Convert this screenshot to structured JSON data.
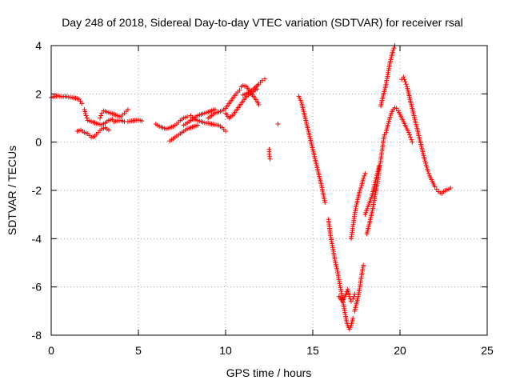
{
  "chart_data": {
    "type": "scatter",
    "title": "Day 248 of 2018, Sidereal Day-to-day VTEC variation (SDTVAR) for receiver rsal",
    "xlabel": "GPS time / hours",
    "ylabel": "SDTVAR / TECUs",
    "xlim": [
      0,
      25
    ],
    "ylim": [
      -8,
      4
    ],
    "x_ticks": [
      0,
      5,
      10,
      15,
      20,
      25
    ],
    "x_tick_labels": [
      "0",
      "5",
      "10",
      "15",
      "20",
      "25"
    ],
    "y_ticks": [
      -8,
      -6,
      -4,
      -2,
      0,
      2,
      4
    ],
    "y_tick_labels": [
      "-8",
      "-6",
      "-4",
      "-2",
      "0",
      "2",
      "4"
    ],
    "grid": true,
    "marker": "+",
    "color": "#ff0000",
    "series": [
      {
        "name": "SDTVAR",
        "points": [
          [
            0.0,
            1.85
          ],
          [
            0.2,
            1.9
          ],
          [
            0.4,
            1.92
          ],
          [
            0.6,
            1.88
          ],
          [
            0.8,
            1.9
          ],
          [
            1.0,
            1.87
          ],
          [
            1.2,
            1.85
          ],
          [
            1.4,
            1.82
          ],
          [
            1.6,
            1.78
          ],
          [
            1.75,
            1.6
          ],
          [
            1.5,
            0.45
          ],
          [
            1.7,
            0.5
          ],
          [
            1.9,
            0.4
          ],
          [
            2.1,
            0.35
          ],
          [
            2.3,
            0.2
          ],
          [
            2.5,
            0.25
          ],
          [
            2.7,
            0.4
          ],
          [
            2.9,
            0.55
          ],
          [
            3.1,
            0.6
          ],
          [
            3.3,
            0.5
          ],
          [
            1.9,
            1.35
          ],
          [
            2.0,
            1.1
          ],
          [
            2.1,
            0.9
          ],
          [
            2.3,
            0.85
          ],
          [
            2.5,
            0.8
          ],
          [
            2.7,
            0.75
          ],
          [
            2.9,
            0.72
          ],
          [
            3.1,
            0.8
          ],
          [
            3.3,
            0.9
          ],
          [
            3.5,
            0.95
          ],
          [
            2.8,
            1.0
          ],
          [
            2.9,
            1.2
          ],
          [
            3.0,
            1.3
          ],
          [
            3.2,
            1.25
          ],
          [
            3.4,
            1.2
          ],
          [
            3.6,
            1.15
          ],
          [
            3.8,
            1.1
          ],
          [
            4.0,
            1.05
          ],
          [
            4.2,
            1.2
          ],
          [
            4.4,
            1.35
          ],
          [
            3.6,
            0.85
          ],
          [
            3.8,
            0.88
          ],
          [
            4.0,
            0.9
          ],
          [
            4.2,
            0.85
          ],
          [
            4.4,
            0.85
          ],
          [
            4.6,
            0.88
          ],
          [
            4.8,
            0.9
          ],
          [
            5.0,
            0.92
          ],
          [
            5.2,
            0.88
          ],
          [
            6.0,
            0.75
          ],
          [
            6.2,
            0.65
          ],
          [
            6.4,
            0.6
          ],
          [
            6.6,
            0.55
          ],
          [
            6.8,
            0.6
          ],
          [
            7.0,
            0.65
          ],
          [
            7.2,
            0.75
          ],
          [
            7.4,
            0.9
          ],
          [
            7.6,
            1.0
          ],
          [
            7.8,
            1.05
          ],
          [
            6.8,
            0.05
          ],
          [
            7.0,
            0.15
          ],
          [
            7.2,
            0.25
          ],
          [
            7.4,
            0.35
          ],
          [
            7.6,
            0.45
          ],
          [
            7.8,
            0.55
          ],
          [
            8.0,
            0.6
          ],
          [
            8.2,
            0.65
          ],
          [
            8.4,
            0.7
          ],
          [
            7.6,
            0.7
          ],
          [
            7.8,
            0.8
          ],
          [
            8.0,
            0.9
          ],
          [
            8.2,
            1.0
          ],
          [
            8.4,
            1.1
          ],
          [
            8.6,
            1.15
          ],
          [
            8.8,
            1.2
          ],
          [
            9.0,
            1.25
          ],
          [
            9.2,
            1.3
          ],
          [
            9.4,
            1.35
          ],
          [
            8.0,
            1.1
          ],
          [
            8.2,
            0.95
          ],
          [
            8.4,
            0.9
          ],
          [
            8.6,
            0.85
          ],
          [
            8.8,
            0.8
          ],
          [
            9.0,
            0.78
          ],
          [
            9.2,
            0.75
          ],
          [
            9.4,
            0.72
          ],
          [
            9.6,
            0.7
          ],
          [
            9.8,
            0.6
          ],
          [
            10.0,
            0.45
          ],
          [
            9.0,
            1.0
          ],
          [
            9.2,
            1.1
          ],
          [
            9.4,
            1.2
          ],
          [
            9.6,
            1.25
          ],
          [
            9.8,
            1.3
          ],
          [
            10.0,
            1.4
          ],
          [
            10.2,
            1.6
          ],
          [
            10.4,
            1.8
          ],
          [
            10.6,
            2.0
          ],
          [
            10.8,
            2.15
          ],
          [
            10.0,
            1.2
          ],
          [
            10.2,
            1.0
          ],
          [
            10.4,
            1.1
          ],
          [
            10.6,
            1.3
          ],
          [
            10.8,
            1.5
          ],
          [
            11.0,
            1.7
          ],
          [
            11.2,
            1.9
          ],
          [
            11.4,
            2.0
          ],
          [
            11.6,
            2.1
          ],
          [
            11.8,
            2.2
          ],
          [
            10.9,
            2.3
          ],
          [
            11.0,
            2.35
          ],
          [
            11.2,
            2.3
          ],
          [
            11.4,
            2.1
          ],
          [
            11.6,
            1.9
          ],
          [
            11.8,
            1.7
          ],
          [
            11.9,
            1.55
          ],
          [
            11.0,
            1.95
          ],
          [
            11.3,
            2.05
          ],
          [
            11.6,
            2.2
          ],
          [
            11.9,
            2.4
          ],
          [
            12.1,
            2.55
          ],
          [
            12.25,
            2.62
          ],
          [
            12.5,
            -0.3
          ],
          [
            12.5,
            -0.5
          ],
          [
            12.55,
            -0.7
          ],
          [
            13.0,
            0.75
          ],
          [
            14.2,
            1.9
          ],
          [
            14.35,
            1.65
          ],
          [
            14.5,
            1.2
          ],
          [
            14.7,
            0.6
          ],
          [
            14.9,
            0.0
          ],
          [
            15.1,
            -0.6
          ],
          [
            15.3,
            -1.2
          ],
          [
            15.5,
            -1.8
          ],
          [
            15.7,
            -2.5
          ],
          [
            15.9,
            -3.2
          ],
          [
            16.0,
            -3.8
          ],
          [
            16.1,
            -4.2
          ],
          [
            16.2,
            -4.6
          ],
          [
            16.3,
            -5.0
          ],
          [
            16.4,
            -5.3
          ],
          [
            16.5,
            -5.7
          ],
          [
            16.6,
            -6.1
          ],
          [
            16.7,
            -6.5
          ],
          [
            16.8,
            -6.9
          ],
          [
            16.9,
            -7.3
          ],
          [
            17.0,
            -7.6
          ],
          [
            17.1,
            -7.75
          ],
          [
            17.2,
            -7.6
          ],
          [
            17.3,
            -7.3
          ],
          [
            16.5,
            -6.4
          ],
          [
            16.7,
            -6.6
          ],
          [
            16.9,
            -6.3
          ],
          [
            17.0,
            -6.1
          ],
          [
            17.1,
            -6.4
          ],
          [
            17.2,
            -6.6
          ],
          [
            17.3,
            -6.5
          ],
          [
            17.4,
            -6.3
          ],
          [
            17.4,
            -7.0
          ],
          [
            17.5,
            -6.7
          ],
          [
            17.6,
            -6.4
          ],
          [
            17.7,
            -6.0
          ],
          [
            17.8,
            -5.5
          ],
          [
            17.9,
            -5.1
          ],
          [
            17.2,
            -4.0
          ],
          [
            17.3,
            -3.5
          ],
          [
            17.4,
            -3.0
          ],
          [
            17.5,
            -2.6
          ],
          [
            17.6,
            -2.3
          ],
          [
            17.7,
            -2.0
          ],
          [
            17.8,
            -1.8
          ],
          [
            17.9,
            -1.5
          ],
          [
            18.0,
            -1.3
          ],
          [
            18.1,
            -3.8
          ],
          [
            18.2,
            -3.5
          ],
          [
            18.3,
            -3.2
          ],
          [
            18.4,
            -2.9
          ],
          [
            18.5,
            -2.5
          ],
          [
            18.6,
            -2.1
          ],
          [
            18.7,
            -1.7
          ],
          [
            18.8,
            -1.2
          ],
          [
            18.9,
            -0.7
          ],
          [
            19.0,
            -0.2
          ],
          [
            19.1,
            0.3
          ],
          [
            18.0,
            -3.0
          ],
          [
            18.2,
            -2.6
          ],
          [
            18.4,
            -2.2
          ],
          [
            18.6,
            -1.6
          ],
          [
            18.8,
            -1.0
          ],
          [
            18.9,
            1.5
          ],
          [
            19.0,
            1.8
          ],
          [
            19.1,
            2.1
          ],
          [
            19.2,
            2.4
          ],
          [
            19.3,
            2.8
          ],
          [
            19.4,
            3.2
          ],
          [
            19.5,
            3.5
          ],
          [
            19.6,
            3.8
          ],
          [
            19.7,
            4.0
          ],
          [
            19.2,
            0.4
          ],
          [
            19.3,
            0.7
          ],
          [
            19.4,
            0.95
          ],
          [
            19.5,
            1.2
          ],
          [
            19.6,
            1.35
          ],
          [
            19.7,
            1.42
          ],
          [
            19.8,
            1.4
          ],
          [
            19.9,
            1.3
          ],
          [
            20.0,
            1.15
          ],
          [
            20.1,
            1.0
          ],
          [
            20.2,
            0.85
          ],
          [
            20.3,
            0.7
          ],
          [
            20.4,
            0.55
          ],
          [
            20.5,
            0.4
          ],
          [
            20.6,
            0.2
          ],
          [
            20.7,
            0.0
          ],
          [
            20.1,
            2.6
          ],
          [
            20.2,
            2.7
          ],
          [
            20.3,
            2.5
          ],
          [
            20.4,
            2.3
          ],
          [
            20.5,
            2.0
          ],
          [
            20.6,
            1.7
          ],
          [
            20.7,
            1.4
          ],
          [
            20.8,
            1.1
          ],
          [
            20.9,
            0.8
          ],
          [
            21.0,
            0.5
          ],
          [
            21.1,
            0.2
          ],
          [
            21.2,
            -0.1
          ],
          [
            21.3,
            -0.4
          ],
          [
            21.4,
            -0.7
          ],
          [
            21.5,
            -0.95
          ],
          [
            21.6,
            -1.2
          ],
          [
            21.7,
            -1.4
          ],
          [
            21.8,
            -1.55
          ],
          [
            21.9,
            -1.7
          ],
          [
            22.0,
            -1.85
          ],
          [
            22.1,
            -1.95
          ],
          [
            22.2,
            -2.05
          ],
          [
            22.3,
            -2.1
          ],
          [
            22.4,
            -2.12
          ],
          [
            22.5,
            -2.05
          ],
          [
            22.6,
            -2.0
          ],
          [
            22.7,
            -1.98
          ],
          [
            22.8,
            -1.95
          ],
          [
            22.9,
            -1.9
          ]
        ]
      }
    ]
  }
}
